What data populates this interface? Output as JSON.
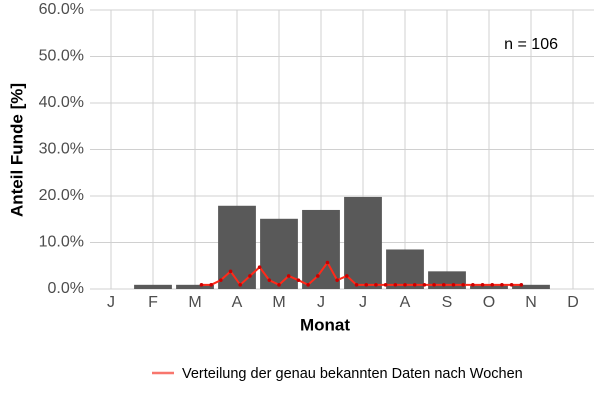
{
  "chart_data": {
    "type": "bar",
    "x_label": "Monat",
    "y_label": "Anteil Funde [%]",
    "annotation": "n = 106",
    "categories": [
      "J",
      "F",
      "M",
      "A",
      "M",
      "J",
      "J",
      "A",
      "S",
      "O",
      "N",
      "D"
    ],
    "values": [
      0,
      0.9,
      0.9,
      17.9,
      15.1,
      17.0,
      19.8,
      8.5,
      3.8,
      0.9,
      0.9,
      0
    ],
    "color": "#595959",
    "ylim": [
      0,
      60
    ],
    "yticks": [
      {
        "value": 0,
        "label": "0.0%"
      },
      {
        "value": 10,
        "label": "10.0%"
      },
      {
        "value": 20,
        "label": "20.0%"
      },
      {
        "value": 30,
        "label": "30.0%"
      },
      {
        "value": 40,
        "label": "40.0%"
      },
      {
        "value": 50,
        "label": "50.0%"
      },
      {
        "value": 60,
        "label": "60.0%"
      }
    ],
    "grid": true,
    "legend": "bottom",
    "line": {
      "name": "Verteilung der genau bekannten Daten nach Wochen",
      "color": "#f8766d",
      "point_color": "#cc0000",
      "x": [
        12,
        13,
        14,
        15,
        16,
        17,
        18,
        19,
        20,
        21,
        22,
        23,
        24,
        25,
        26,
        27,
        28,
        29,
        30,
        31,
        32,
        33,
        34,
        35,
        36,
        37,
        38,
        39,
        40,
        41,
        42,
        43,
        44,
        45
      ],
      "values": [
        0.9,
        0.9,
        1.9,
        3.8,
        0.9,
        2.8,
        4.7,
        1.9,
        0.9,
        2.8,
        1.9,
        0.9,
        2.8,
        5.7,
        1.9,
        2.8,
        0.9,
        0.9,
        0.9,
        0.9,
        0.9,
        0.9,
        0.9,
        0.9,
        0.9,
        0.9,
        0.9,
        0.9,
        0.9,
        0.9,
        0.9,
        0.9,
        0.9,
        0.9
      ]
    }
  }
}
